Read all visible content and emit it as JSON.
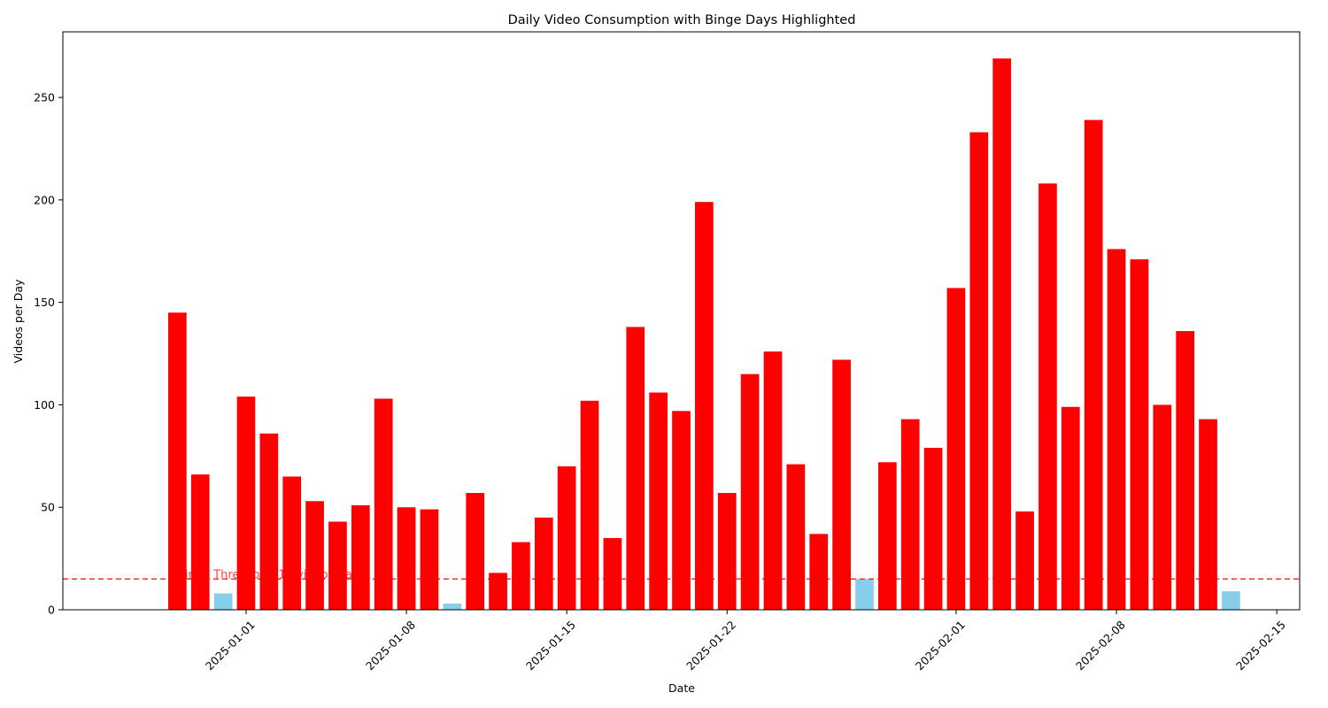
{
  "chart_data": {
    "type": "bar",
    "title": "Daily Video Consumption with Binge Days Highlighted",
    "xlabel": "Date",
    "ylabel": "Videos per Day",
    "x_axis_type": "date",
    "xlim": [
      "2024-12-24",
      "2025-02-16"
    ],
    "ylim": [
      0,
      282
    ],
    "x_ticks": [
      "2025-01-01",
      "2025-01-08",
      "2025-01-15",
      "2025-01-22",
      "2025-02-01",
      "2025-02-08",
      "2025-02-15"
    ],
    "y_ticks": [
      0,
      50,
      100,
      150,
      200,
      250
    ],
    "grid": false,
    "threshold": {
      "value": 15,
      "label": "Binge Threshold (15 videos/day)",
      "color": "#ff0000",
      "style": "dashed"
    },
    "colors": {
      "binge": "#ff0000",
      "normal": "#87ceeb"
    },
    "series": [
      {
        "dates": [
          "2024-12-29",
          "2024-12-30",
          "2024-12-31",
          "2025-01-01",
          "2025-01-02",
          "2025-01-03",
          "2025-01-04",
          "2025-01-05",
          "2025-01-06",
          "2025-01-07",
          "2025-01-08",
          "2025-01-09",
          "2025-01-10",
          "2025-01-11",
          "2025-01-12",
          "2025-01-13",
          "2025-01-14",
          "2025-01-15",
          "2025-01-16",
          "2025-01-17",
          "2025-01-18",
          "2025-01-19",
          "2025-01-20",
          "2025-01-21",
          "2025-01-22",
          "2025-01-23",
          "2025-01-24",
          "2025-01-25",
          "2025-01-26",
          "2025-01-27",
          "2025-01-28",
          "2025-01-29",
          "2025-01-30",
          "2025-01-31",
          "2025-02-01",
          "2025-02-02",
          "2025-02-03",
          "2025-02-04",
          "2025-02-05",
          "2025-02-06",
          "2025-02-07",
          "2025-02-08",
          "2025-02-09",
          "2025-02-10",
          "2025-02-11",
          "2025-02-12",
          "2025-02-13",
          "2025-02-14"
        ],
        "values": [
          145,
          66,
          8,
          104,
          86,
          65,
          53,
          43,
          51,
          103,
          50,
          49,
          3,
          57,
          18,
          33,
          45,
          70,
          102,
          35,
          138,
          106,
          97,
          199,
          57,
          115,
          126,
          71,
          37,
          122,
          15,
          72,
          93,
          79,
          157,
          233,
          269,
          48,
          208,
          99,
          239,
          176,
          171,
          100,
          136,
          93,
          9,
          0
        ]
      }
    ]
  }
}
